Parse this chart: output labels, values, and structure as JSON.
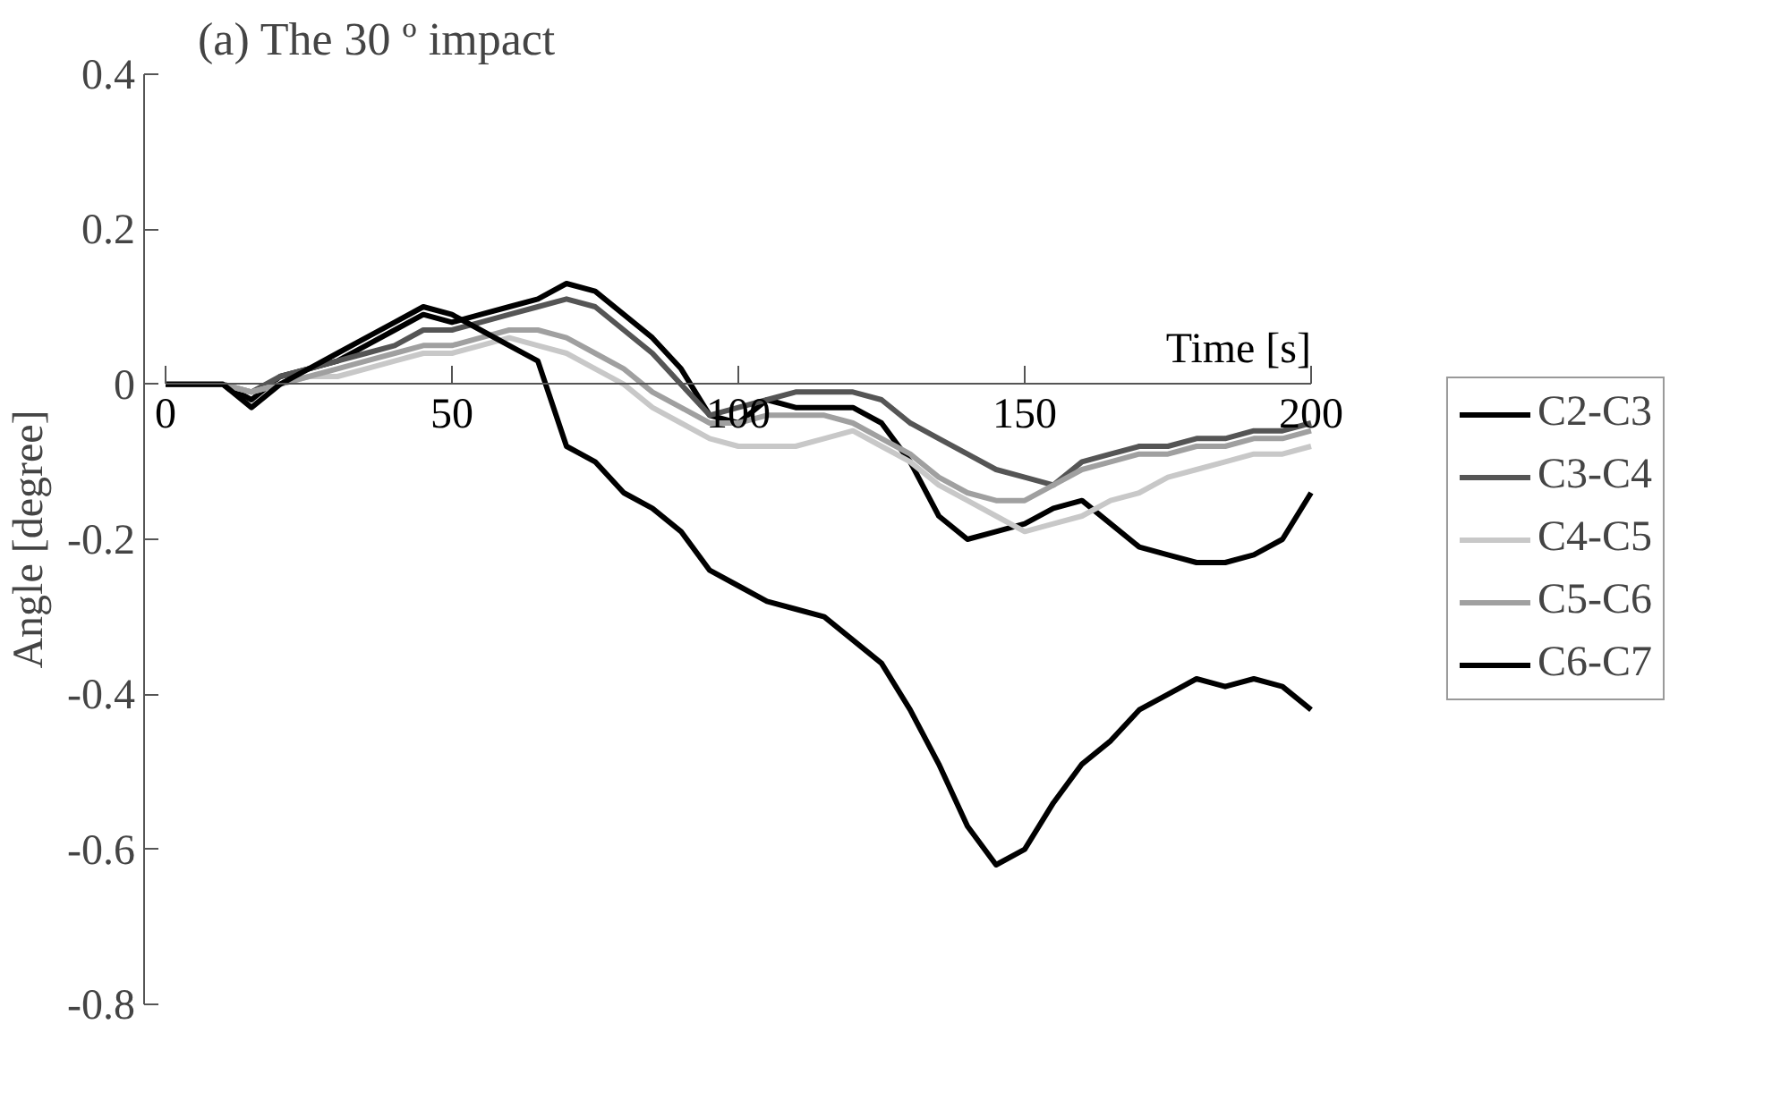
{
  "chart_data": {
    "type": "line",
    "title": "(a) The 30 º impact",
    "xlabel": "Time [s]",
    "ylabel": "Angle [degree]",
    "x": [
      0,
      5,
      10,
      15,
      20,
      25,
      30,
      35,
      40,
      45,
      50,
      55,
      60,
      65,
      70,
      75,
      80,
      85,
      90,
      95,
      100,
      105,
      110,
      115,
      120,
      125,
      130,
      135,
      140,
      145,
      150,
      155,
      160,
      165,
      170,
      175,
      180,
      185,
      190,
      195,
      200
    ],
    "series": [
      {
        "name": "C2-C3",
        "color": "#000000",
        "values": [
          0,
          0,
          0,
          -0.02,
          0.01,
          0.02,
          0.03,
          0.05,
          0.07,
          0.09,
          0.08,
          0.09,
          0.1,
          0.11,
          0.13,
          0.12,
          0.09,
          0.06,
          0.02,
          -0.04,
          -0.05,
          -0.02,
          -0.03,
          -0.03,
          -0.03,
          -0.05,
          -0.1,
          -0.17,
          -0.2,
          -0.19,
          -0.18,
          -0.16,
          -0.15,
          -0.18,
          -0.21,
          -0.22,
          -0.23,
          -0.23,
          -0.22,
          -0.2,
          -0.14
        ]
      },
      {
        "name": "C3-C4",
        "color": "#555555",
        "values": [
          0,
          0,
          0,
          -0.01,
          0.01,
          0.02,
          0.03,
          0.04,
          0.05,
          0.07,
          0.07,
          0.08,
          0.09,
          0.1,
          0.11,
          0.1,
          0.07,
          0.04,
          0.0,
          -0.04,
          -0.03,
          -0.02,
          -0.01,
          -0.01,
          -0.01,
          -0.02,
          -0.05,
          -0.07,
          -0.09,
          -0.11,
          -0.12,
          -0.13,
          -0.1,
          -0.09,
          -0.08,
          -0.08,
          -0.07,
          -0.07,
          -0.06,
          -0.06,
          -0.05
        ]
      },
      {
        "name": "C4-C5",
        "color": "#c8c8c8",
        "values": [
          0,
          0,
          0,
          -0.01,
          0,
          0.01,
          0.01,
          0.02,
          0.03,
          0.04,
          0.04,
          0.05,
          0.06,
          0.05,
          0.04,
          0.02,
          0.0,
          -0.03,
          -0.05,
          -0.07,
          -0.08,
          -0.08,
          -0.08,
          -0.07,
          -0.06,
          -0.08,
          -0.1,
          -0.13,
          -0.15,
          -0.17,
          -0.19,
          -0.18,
          -0.17,
          -0.15,
          -0.14,
          -0.12,
          -0.11,
          -0.1,
          -0.09,
          -0.09,
          -0.08
        ]
      },
      {
        "name": "C5-C6",
        "color": "#a0a0a0",
        "values": [
          0,
          0,
          0,
          -0.01,
          0,
          0.01,
          0.02,
          0.03,
          0.04,
          0.05,
          0.05,
          0.06,
          0.07,
          0.07,
          0.06,
          0.04,
          0.02,
          -0.01,
          -0.03,
          -0.05,
          -0.05,
          -0.04,
          -0.04,
          -0.04,
          -0.05,
          -0.07,
          -0.09,
          -0.12,
          -0.14,
          -0.15,
          -0.15,
          -0.13,
          -0.11,
          -0.1,
          -0.09,
          -0.09,
          -0.08,
          -0.08,
          -0.07,
          -0.07,
          -0.06
        ]
      },
      {
        "name": "C6-C7",
        "color": "#000000",
        "values": [
          0,
          0,
          0,
          -0.03,
          0.0,
          0.02,
          0.04,
          0.06,
          0.08,
          0.1,
          0.09,
          0.07,
          0.05,
          0.03,
          -0.08,
          -0.1,
          -0.14,
          -0.16,
          -0.19,
          -0.24,
          -0.26,
          -0.28,
          -0.29,
          -0.3,
          -0.33,
          -0.36,
          -0.42,
          -0.49,
          -0.57,
          -0.62,
          -0.6,
          -0.54,
          -0.49,
          -0.46,
          -0.42,
          -0.4,
          -0.38,
          -0.39,
          -0.38,
          -0.39,
          -0.42
        ]
      }
    ],
    "xlim": [
      0,
      200
    ],
    "xticks": [
      0,
      50,
      100,
      150,
      200
    ],
    "ylim": [
      -0.8,
      0.4
    ],
    "yticks": [
      0.4,
      0.2,
      0,
      -0.2,
      -0.4,
      -0.6,
      -0.8
    ],
    "grid": false,
    "legend": "right",
    "line_style": "solid",
    "marker": "none"
  }
}
